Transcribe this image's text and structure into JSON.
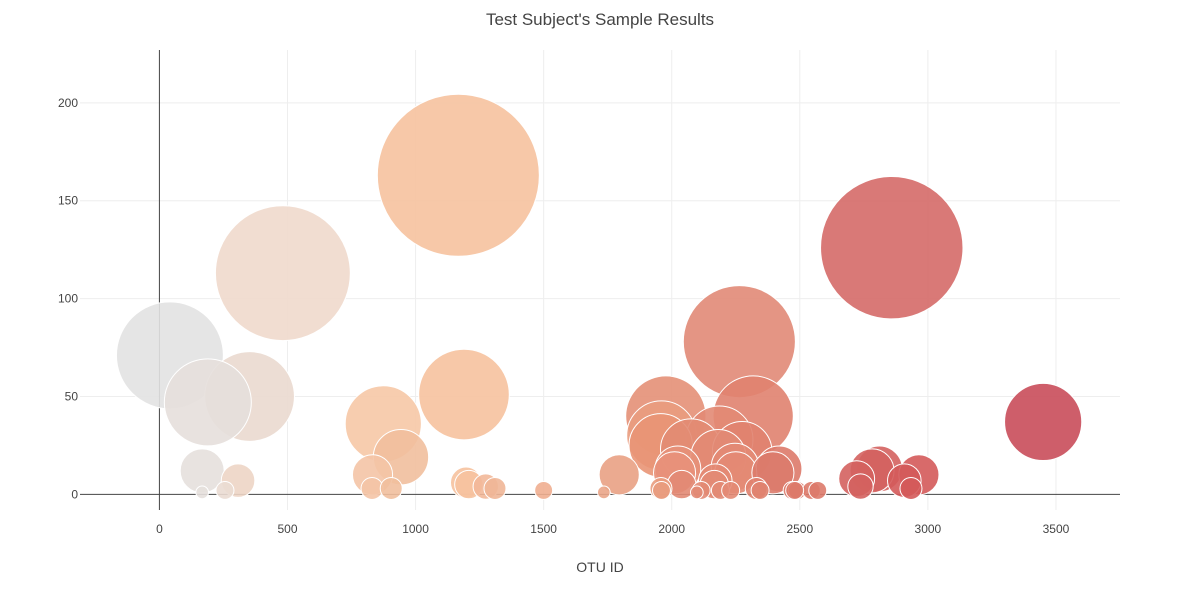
{
  "chart_data": {
    "type": "scatter",
    "title": "Test Subject's Sample Results",
    "xlabel": "OTU ID",
    "ylabel": "",
    "xlim": [
      -310,
      3750
    ],
    "ylim": [
      -8,
      227
    ],
    "xticks": [
      0,
      500,
      1000,
      1500,
      2000,
      2500,
      3000,
      3500
    ],
    "yticks": [
      0,
      50,
      100,
      150,
      200
    ],
    "grid": true,
    "legend": "none",
    "marker": "bubble (size and color encode value)",
    "points": [
      {
        "x": 1167,
        "y": 163,
        "color": "#f6c29e"
      },
      {
        "x": 2859,
        "y": 126,
        "color": "#d56a68"
      },
      {
        "x": 482,
        "y": 113,
        "color": "#efd9cc"
      },
      {
        "x": 2264,
        "y": 78,
        "color": "#e18a77"
      },
      {
        "x": 41,
        "y": 71,
        "color": "#e2e2e2"
      },
      {
        "x": 1189,
        "y": 51,
        "color": "#f6c29e"
      },
      {
        "x": 352,
        "y": 50,
        "color": "#ead9cf"
      },
      {
        "x": 189,
        "y": 47,
        "color": "#e5dfdc"
      },
      {
        "x": 1977,
        "y": 40,
        "color": "#e49077"
      },
      {
        "x": 2318,
        "y": 40,
        "color": "#e0826f"
      },
      {
        "x": 3450,
        "y": 37,
        "color": "#c94c5a"
      },
      {
        "x": 874,
        "y": 36,
        "color": "#f6c8a6"
      },
      {
        "x": 1960,
        "y": 30,
        "color": "#e99c7e"
      },
      {
        "x": 2186,
        "y": 28,
        "color": "#e28a74"
      },
      {
        "x": 1957,
        "y": 25,
        "color": "#e99576"
      },
      {
        "x": 2075,
        "y": 23,
        "color": "#e28b73"
      },
      {
        "x": 2275,
        "y": 22,
        "color": "#e0826f"
      },
      {
        "x": 943,
        "y": 19,
        "color": "#f1bf9d"
      },
      {
        "x": 2182,
        "y": 19,
        "color": "#e28a74"
      },
      {
        "x": 2247,
        "y": 14,
        "color": "#e38a74"
      },
      {
        "x": 2024,
        "y": 13,
        "color": "#e59079"
      },
      {
        "x": 2419,
        "y": 13,
        "color": "#dd7a6a"
      },
      {
        "x": 2811,
        "y": 13,
        "color": "#d4625f"
      },
      {
        "x": 167,
        "y": 12,
        "color": "#e5e0dd"
      },
      {
        "x": 2782,
        "y": 12,
        "color": "#d4625f"
      },
      {
        "x": 2011,
        "y": 11,
        "color": "#e8917a"
      },
      {
        "x": 2250,
        "y": 11,
        "color": "#e38a74"
      },
      {
        "x": 2395,
        "y": 11,
        "color": "#dc7b6b"
      },
      {
        "x": 832,
        "y": 10,
        "color": "#f4c4a6"
      },
      {
        "x": 1795,
        "y": 10,
        "color": "#e9a184"
      },
      {
        "x": 2965,
        "y": 10,
        "color": "#d45a5a"
      },
      {
        "x": 2722,
        "y": 8,
        "color": "#d4625f"
      },
      {
        "x": 307,
        "y": 7,
        "color": "#edd5c5"
      },
      {
        "x": 2170,
        "y": 7,
        "color": "#e38a74"
      },
      {
        "x": 2908,
        "y": 7,
        "color": "#d45a5a"
      },
      {
        "x": 1197,
        "y": 6,
        "color": "#f6c29e"
      },
      {
        "x": 1208,
        "y": 5,
        "color": "#f6c29e"
      },
      {
        "x": 2039,
        "y": 5,
        "color": "#e28a74"
      },
      {
        "x": 2166,
        "y": 5,
        "color": "#e28a74"
      },
      {
        "x": 1274,
        "y": 4,
        "color": "#f2b899"
      },
      {
        "x": 2737,
        "y": 4,
        "color": "#d4625f"
      },
      {
        "x": 830,
        "y": 3,
        "color": "#f4c4a6"
      },
      {
        "x": 905,
        "y": 3,
        "color": "#f1bf9d"
      },
      {
        "x": 1310,
        "y": 3,
        "color": "#f0b697"
      },
      {
        "x": 1958,
        "y": 3,
        "color": "#e99c7e"
      },
      {
        "x": 2330,
        "y": 3,
        "color": "#e0826f"
      },
      {
        "x": 2934,
        "y": 3,
        "color": "#d45a5a"
      },
      {
        "x": 1500,
        "y": 2,
        "color": "#efae90"
      },
      {
        "x": 2190,
        "y": 2,
        "color": "#e28a74"
      },
      {
        "x": 2345,
        "y": 2,
        "color": "#e0826f"
      },
      {
        "x": 2470,
        "y": 2,
        "color": "#dd7a6a"
      },
      {
        "x": 2490,
        "y": 2,
        "color": "#dd7a6a"
      },
      {
        "x": 2545,
        "y": 2,
        "color": "#dd7a6a"
      },
      {
        "x": 2570,
        "y": 2,
        "color": "#dd7a6a"
      },
      {
        "x": 1960,
        "y": 2,
        "color": "#e99c7e"
      },
      {
        "x": 2115,
        "y": 2,
        "color": "#e28a74"
      },
      {
        "x": 2230,
        "y": 2,
        "color": "#e38a74"
      },
      {
        "x": 2480,
        "y": 2,
        "color": "#dd7a6a"
      },
      {
        "x": 256,
        "y": 2,
        "color": "#eadcd3"
      },
      {
        "x": 167,
        "y": 1,
        "color": "#e5e0dd"
      },
      {
        "x": 1735,
        "y": 1,
        "color": "#eaa588"
      },
      {
        "x": 2098,
        "y": 1,
        "color": "#e28a74"
      }
    ]
  }
}
